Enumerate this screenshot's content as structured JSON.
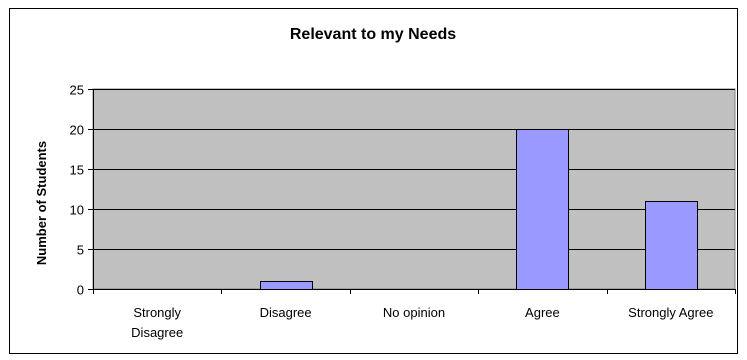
{
  "chart_data": {
    "type": "bar",
    "title": "Relevant to my Needs",
    "xlabel": "",
    "ylabel": "Number of Students",
    "categories": [
      "Strongly Disagree",
      "Disagree",
      "No opinion",
      "Agree",
      "Strongly Agree"
    ],
    "category_label_lines": [
      [
        "Strongly",
        "Disagree"
      ],
      [
        "Disagree"
      ],
      [
        "No opinion"
      ],
      [
        "Agree"
      ],
      [
        "Strongly Agree"
      ]
    ],
    "values": [
      0,
      1,
      0,
      20,
      11
    ],
    "ylim": [
      0,
      25
    ],
    "yticks": [
      0,
      5,
      10,
      15,
      20,
      25
    ],
    "ytick_labels": [
      "0",
      "5",
      "10",
      "15",
      "20",
      "25"
    ],
    "grid": true,
    "legend": "none",
    "colors": {
      "bar_fill": "#9999ff",
      "plot_background": "#c0c0c0",
      "gridline": "#000000"
    }
  }
}
